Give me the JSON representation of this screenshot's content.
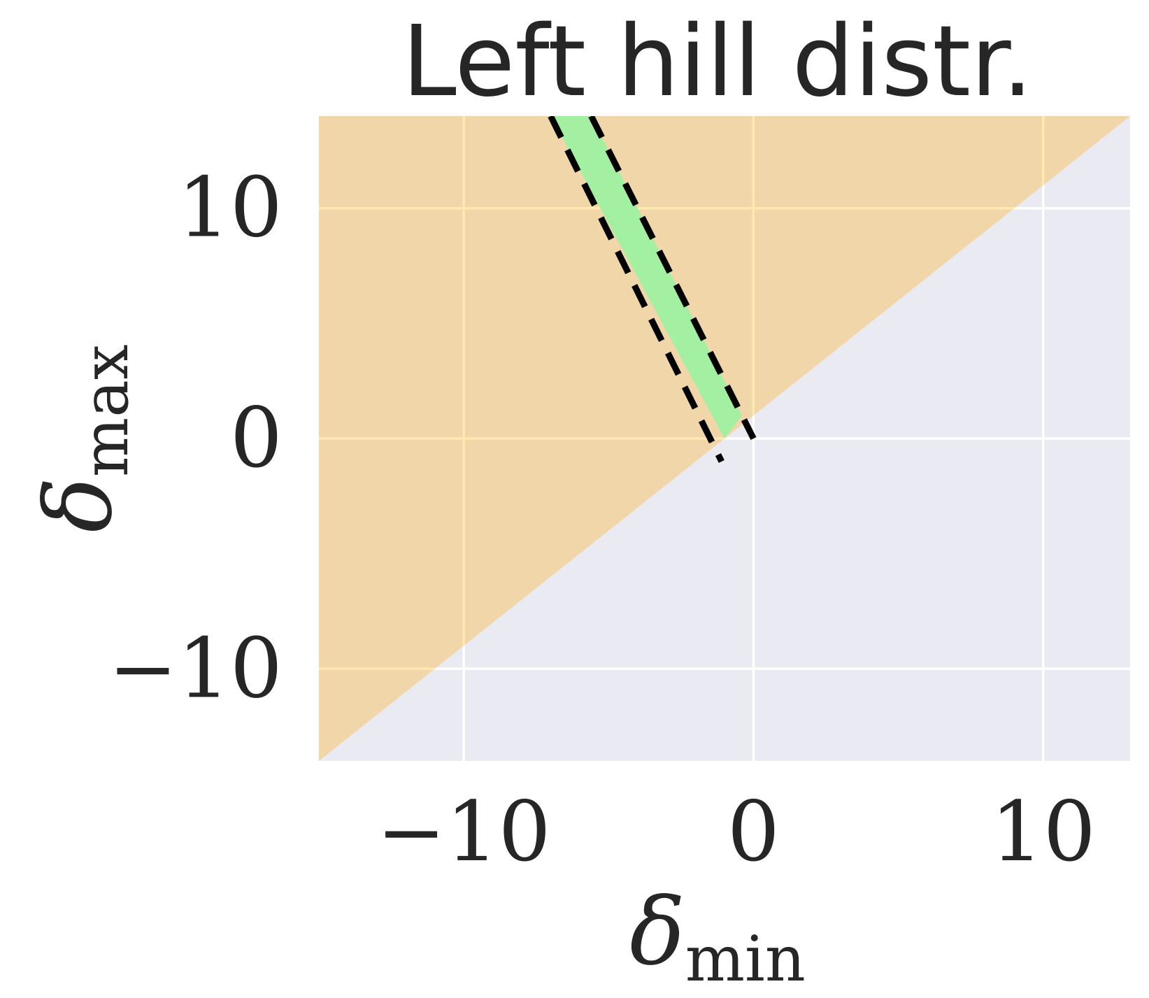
{
  "chart_data": {
    "type": "area",
    "title": "Left hill distr.",
    "xlabel": {
      "symbol": "δ",
      "subscript": "min"
    },
    "ylabel": {
      "symbol": "δ",
      "subscript": "max"
    },
    "xlim": [
      -15,
      13
    ],
    "ylim": [
      -14,
      14
    ],
    "xticks": [
      {
        "value": -10,
        "label": "−10"
      },
      {
        "value": 0,
        "label": "0"
      },
      {
        "value": 10,
        "label": "10"
      }
    ],
    "yticks": [
      {
        "value": 10,
        "label": "10"
      },
      {
        "value": 0,
        "label": "0"
      },
      {
        "value": -10,
        "label": "−10"
      }
    ],
    "grid": true,
    "regions": [
      {
        "fill": "#eaeaf2",
        "role": "background"
      },
      {
        "fill": "#f0d6a8",
        "role": "valid region above diagonal",
        "vertices": [
          [
            -15,
            -14
          ],
          [
            13,
            14
          ],
          [
            -15,
            14
          ]
        ]
      }
    ],
    "band": {
      "fill": "#a3f0a3",
      "vertices": [
        [
          -7.0,
          14
        ],
        [
          -5.6,
          14
        ],
        [
          -0.4,
          1.0
        ],
        [
          -1.0,
          0.0
        ]
      ]
    },
    "boundary_lines": [
      {
        "style": "dashed",
        "color": "#000000",
        "x": [
          -7.0,
          -1.1
        ],
        "y": [
          14,
          -1.0
        ]
      },
      {
        "style": "dashed",
        "color": "#000000",
        "x": [
          -5.6,
          0.0
        ],
        "y": [
          14,
          0.0
        ]
      }
    ],
    "colors": {
      "grid": "#ffffff",
      "grid_over_orange": "#ffe9b0",
      "text": "#262626"
    }
  }
}
